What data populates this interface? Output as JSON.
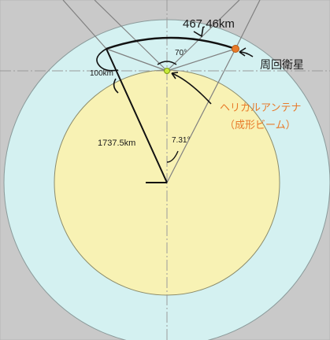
{
  "labels": {
    "orbit_arc": "467.46km",
    "satellite": "周回衛星",
    "antenna_line1": "ヘリカルアンテナ",
    "antenna_line2": "（成形ビーム）",
    "altitude": "100km",
    "radius": "1737.5km",
    "beam_angle": "70°",
    "center_angle": "7.31°"
  },
  "colors": {
    "background": "#ffffff",
    "panel_gray": "#c9c9c9",
    "orbit_zone": "#d4f1f1",
    "moon": "#f8f2b4",
    "annotation_orange": "#e87a2a",
    "satellite_dot": "#e87a2a",
    "antenna_dot": "#c8ea3a"
  }
}
